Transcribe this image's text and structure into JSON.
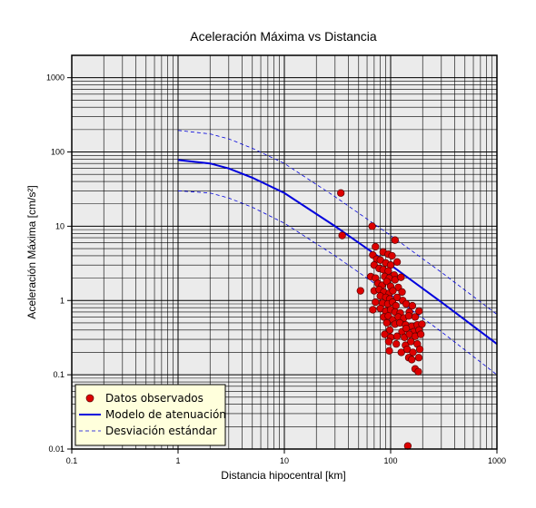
{
  "chart_data": {
    "type": "scatter",
    "title": "Aceleración Máxima vs Distancia",
    "xlabel": "Distancia hipocentral [km]",
    "ylabel": "Aceleración Máxima [cm/s²]",
    "x_scale": "log",
    "y_scale": "log",
    "xlim": [
      0.1,
      1000
    ],
    "ylim": [
      0.01,
      2000
    ],
    "x_ticks": [
      "0.1",
      "1",
      "10",
      "100",
      "1000"
    ],
    "y_ticks": [
      "0.01",
      "0.1",
      "1",
      "10",
      "100",
      "1000"
    ],
    "grid": true,
    "legend": "bottom-left",
    "colors": {
      "plot_background": "#ebebeb",
      "grid": "#000000",
      "points": "#dd0000",
      "model": "#0000dd",
      "legend_background": "#ffffdc"
    },
    "legend_entries": [
      {
        "label": "Datos observados",
        "symbol": "circle"
      },
      {
        "label": "Modelo de atenuación",
        "symbol": "solid-line"
      },
      {
        "label": "Desviación estándar",
        "symbol": "dashed-line"
      }
    ],
    "series": [
      {
        "name": "Datos observados",
        "kind": "points",
        "points": [
          [
            34,
            28
          ],
          [
            35,
            7.5
          ],
          [
            52,
            1.35
          ],
          [
            67,
            10
          ],
          [
            110,
            6.5
          ],
          [
            72,
            5.3
          ],
          [
            85,
            4.5
          ],
          [
            95,
            4.2
          ],
          [
            103,
            4.0
          ],
          [
            68,
            4.1
          ],
          [
            74,
            3.6
          ],
          [
            80,
            3.5
          ],
          [
            90,
            3.2
          ],
          [
            100,
            3.0
          ],
          [
            115,
            3.3
          ],
          [
            70,
            3.0
          ],
          [
            78,
            2.7
          ],
          [
            85,
            2.6
          ],
          [
            95,
            2.5
          ],
          [
            108,
            2.2
          ],
          [
            65,
            2.1
          ],
          [
            72,
            2.0
          ],
          [
            88,
            2.1
          ],
          [
            97,
            2.0
          ],
          [
            110,
            1.9
          ],
          [
            125,
            2.05
          ],
          [
            76,
            1.7
          ],
          [
            83,
            1.6
          ],
          [
            92,
            1.8
          ],
          [
            100,
            1.55
          ],
          [
            118,
            1.5
          ],
          [
            70,
            1.35
          ],
          [
            78,
            1.4
          ],
          [
            86,
            1.3
          ],
          [
            97,
            1.25
          ],
          [
            105,
            1.35
          ],
          [
            128,
            1.3
          ],
          [
            80,
            1.15
          ],
          [
            90,
            1.1
          ],
          [
            98,
            1.05
          ],
          [
            115,
            1.1
          ],
          [
            130,
            1.0
          ],
          [
            72,
            0.95
          ],
          [
            84,
            0.92
          ],
          [
            94,
            0.9
          ],
          [
            104,
            0.95
          ],
          [
            112,
            0.85
          ],
          [
            140,
            0.9
          ],
          [
            160,
            0.85
          ],
          [
            68,
            0.75
          ],
          [
            80,
            0.78
          ],
          [
            90,
            0.72
          ],
          [
            100,
            0.75
          ],
          [
            110,
            0.7
          ],
          [
            123,
            0.68
          ],
          [
            150,
            0.7
          ],
          [
            185,
            0.72
          ],
          [
            86,
            0.6
          ],
          [
            95,
            0.62
          ],
          [
            105,
            0.55
          ],
          [
            118,
            0.6
          ],
          [
            133,
            0.58
          ],
          [
            148,
            0.62
          ],
          [
            170,
            0.6
          ],
          [
            92,
            0.5
          ],
          [
            110,
            0.48
          ],
          [
            122,
            0.5
          ],
          [
            138,
            0.47
          ],
          [
            158,
            0.45
          ],
          [
            178,
            0.47
          ],
          [
            197,
            0.48
          ],
          [
            98,
            0.4
          ],
          [
            128,
            0.38
          ],
          [
            140,
            0.42
          ],
          [
            165,
            0.38
          ],
          [
            185,
            0.4
          ],
          [
            88,
            0.35
          ],
          [
            100,
            0.32
          ],
          [
            115,
            0.33
          ],
          [
            135,
            0.32
          ],
          [
            150,
            0.35
          ],
          [
            170,
            0.33
          ],
          [
            192,
            0.35
          ],
          [
            96,
            0.28
          ],
          [
            113,
            0.26
          ],
          [
            138,
            0.25
          ],
          [
            155,
            0.28
          ],
          [
            178,
            0.26
          ],
          [
            97,
            0.21
          ],
          [
            126,
            0.2
          ],
          [
            143,
            0.22
          ],
          [
            162,
            0.2
          ],
          [
            188,
            0.22
          ],
          [
            148,
            0.17
          ],
          [
            158,
            0.16
          ],
          [
            184,
            0.17
          ],
          [
            170,
            0.12
          ],
          [
            182,
            0.11
          ],
          [
            145,
            0.011
          ]
        ]
      },
      {
        "name": "Modelo de atenuación",
        "kind": "line",
        "points": [
          [
            1,
            78
          ],
          [
            2,
            70
          ],
          [
            3,
            60
          ],
          [
            5,
            45
          ],
          [
            10,
            28
          ],
          [
            30,
            10
          ],
          [
            100,
            3
          ],
          [
            300,
            0.95
          ],
          [
            1000,
            0.26
          ]
        ]
      },
      {
        "name": "Desviación estándar",
        "kind": "dashed",
        "points": [
          [
            1,
            195
          ],
          [
            2,
            175
          ],
          [
            3,
            150
          ],
          [
            5,
            112
          ],
          [
            10,
            70
          ],
          [
            30,
            25
          ],
          [
            100,
            7.5
          ],
          [
            300,
            2.4
          ],
          [
            1000,
            0.65
          ]
        ]
      },
      {
        "name": "Desviación estándar",
        "kind": "dashed",
        "points": [
          [
            1,
            30
          ],
          [
            2,
            28
          ],
          [
            3,
            24
          ],
          [
            5,
            18
          ],
          [
            10,
            11
          ],
          [
            30,
            4
          ],
          [
            100,
            1.2
          ],
          [
            300,
            0.38
          ],
          [
            1000,
            0.1
          ]
        ]
      }
    ]
  }
}
